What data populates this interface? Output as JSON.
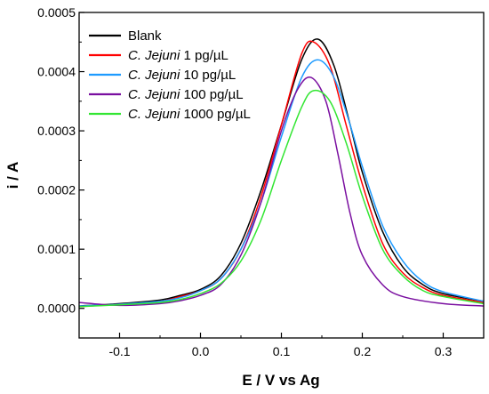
{
  "chart_data": {
    "type": "line",
    "xlabel": "E / V vs Ag",
    "ylabel": "i / A",
    "xlim": [
      -0.15,
      0.35
    ],
    "ylim": [
      -5e-05,
      0.0005
    ],
    "x_ticks": [
      -0.1,
      0.0,
      0.1,
      0.2,
      0.3
    ],
    "x_tick_labels": [
      "-0.1",
      "0.0",
      "0.1",
      "0.2",
      "0.3"
    ],
    "y_ticks": [
      0.0,
      0.0001,
      0.0002,
      0.0003,
      0.0004,
      0.0005
    ],
    "y_tick_labels": [
      "0.0000",
      "0.0001",
      "0.0002",
      "0.0003",
      "0.0004",
      "0.0005"
    ],
    "grid": false,
    "legend_position": "top-left",
    "series": [
      {
        "legend": [
          "Blank"
        ],
        "color": "#000000",
        "points": [
          [
            -0.15,
            4e-06
          ],
          [
            -0.1,
            8e-06
          ],
          [
            -0.05,
            1.4e-05
          ],
          [
            -0.025,
            2.2e-05
          ],
          [
            0.0,
            3.2e-05
          ],
          [
            0.025,
            5.5e-05
          ],
          [
            0.05,
            0.00011
          ],
          [
            0.075,
            0.0002
          ],
          [
            0.1,
            0.00031
          ],
          [
            0.125,
            0.00042
          ],
          [
            0.145,
            0.000455
          ],
          [
            0.165,
            0.00041
          ],
          [
            0.185,
            0.00031
          ],
          [
            0.2,
            0.00023
          ],
          [
            0.225,
            0.00013
          ],
          [
            0.25,
            7e-05
          ],
          [
            0.275,
            4e-05
          ],
          [
            0.3,
            2.5e-05
          ],
          [
            0.35,
            1.2e-05
          ]
        ]
      },
      {
        "legend": [
          "C. Jejuni",
          " 1 pg/µL"
        ],
        "color": "#ff0000",
        "points": [
          [
            -0.15,
            3e-06
          ],
          [
            -0.1,
            7e-06
          ],
          [
            -0.05,
            1.2e-05
          ],
          [
            -0.025,
            2e-05
          ],
          [
            0.0,
            3e-05
          ],
          [
            0.025,
            5e-05
          ],
          [
            0.05,
            0.0001
          ],
          [
            0.075,
            0.00019
          ],
          [
            0.1,
            0.00031
          ],
          [
            0.125,
            0.00043
          ],
          [
            0.14,
            0.00045
          ],
          [
            0.16,
            0.00041
          ],
          [
            0.18,
            0.00031
          ],
          [
            0.2,
            0.00021
          ],
          [
            0.225,
            0.00011
          ],
          [
            0.25,
            6e-05
          ],
          [
            0.275,
            3.5e-05
          ],
          [
            0.3,
            2.2e-05
          ],
          [
            0.35,
            1e-05
          ]
        ]
      },
      {
        "legend": [
          "C. Jejuni",
          " 10 pg/µL"
        ],
        "color": "#1e9bff",
        "points": [
          [
            -0.15,
            4e-06
          ],
          [
            -0.1,
            7e-06
          ],
          [
            -0.05,
            1.2e-05
          ],
          [
            -0.025,
            1.8e-05
          ],
          [
            0.0,
            3e-05
          ],
          [
            0.025,
            5e-05
          ],
          [
            0.05,
            0.0001
          ],
          [
            0.075,
            0.00018
          ],
          [
            0.1,
            0.00029
          ],
          [
            0.125,
            0.00039
          ],
          [
            0.145,
            0.00042
          ],
          [
            0.165,
            0.00039
          ],
          [
            0.185,
            0.00031
          ],
          [
            0.2,
            0.00024
          ],
          [
            0.225,
            0.00014
          ],
          [
            0.25,
            8e-05
          ],
          [
            0.275,
            4.5e-05
          ],
          [
            0.3,
            2.8e-05
          ],
          [
            0.35,
            1.2e-05
          ]
        ]
      },
      {
        "legend": [
          "C. Jejuni",
          " 100 pg/µL"
        ],
        "color": "#7a0fa0",
        "points": [
          [
            -0.15,
            1e-05
          ],
          [
            -0.1,
            5e-06
          ],
          [
            -0.05,
            8e-06
          ],
          [
            -0.025,
            1.3e-05
          ],
          [
            0.0,
            2.2e-05
          ],
          [
            0.025,
            4e-05
          ],
          [
            0.05,
            9e-05
          ],
          [
            0.075,
            0.00018
          ],
          [
            0.1,
            0.0003
          ],
          [
            0.12,
            0.00037
          ],
          [
            0.137,
            0.00039
          ],
          [
            0.155,
            0.00035
          ],
          [
            0.17,
            0.00026
          ],
          [
            0.185,
            0.00016
          ],
          [
            0.2,
            9e-05
          ],
          [
            0.225,
            4e-05
          ],
          [
            0.25,
            2e-05
          ],
          [
            0.3,
            8e-06
          ],
          [
            0.35,
            4e-06
          ]
        ]
      },
      {
        "legend": [
          "C. Jejuni",
          " 1000 pg/µL"
        ],
        "color": "#33e633",
        "points": [
          [
            -0.15,
            3e-06
          ],
          [
            -0.1,
            6e-06
          ],
          [
            -0.05,
            1e-05
          ],
          [
            -0.025,
            1.5e-05
          ],
          [
            0.0,
            2.5e-05
          ],
          [
            0.025,
            4.2e-05
          ],
          [
            0.05,
            8e-05
          ],
          [
            0.075,
            0.00015
          ],
          [
            0.1,
            0.00025
          ],
          [
            0.125,
            0.00034
          ],
          [
            0.14,
            0.000368
          ],
          [
            0.16,
            0.00035
          ],
          [
            0.18,
            0.00028
          ],
          [
            0.2,
            0.00019
          ],
          [
            0.225,
            0.0001
          ],
          [
            0.25,
            5.5e-05
          ],
          [
            0.275,
            3e-05
          ],
          [
            0.3,
            2e-05
          ],
          [
            0.35,
            8e-06
          ]
        ]
      }
    ]
  }
}
